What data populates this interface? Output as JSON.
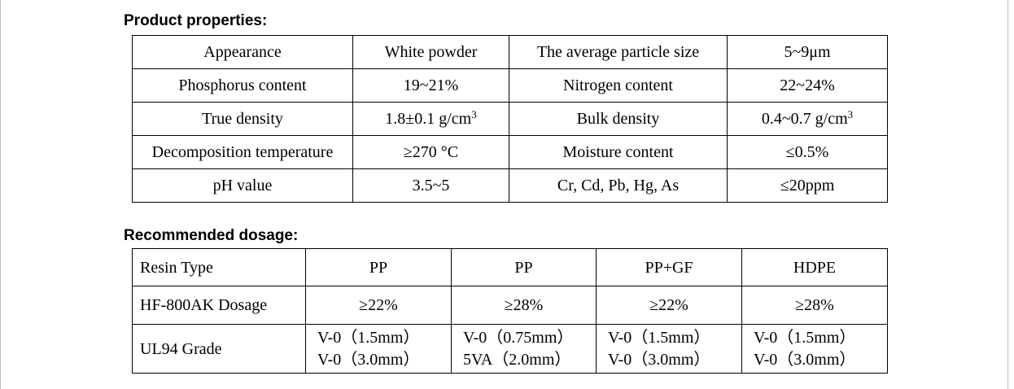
{
  "product_properties": {
    "heading": "Product properties:",
    "rows": [
      [
        "Appearance",
        "White powder",
        "The average particle size",
        "5~9μm"
      ],
      [
        "Phosphorus content",
        "19~21%",
        "Nitrogen content",
        "22~24%"
      ],
      [
        "True density",
        "1.8±0.1 g/cm",
        "Bulk density",
        "0.4~0.7 g/cm"
      ],
      [
        "Decomposition temperature",
        "≥270 °C",
        "Moisture content",
        "≤0.5%"
      ],
      [
        "pH value",
        "3.5~5",
        "Cr, Cd, Pb, Hg, As",
        "≤20ppm"
      ]
    ],
    "superscript": "3"
  },
  "recommended_dosage": {
    "heading": "Recommended dosage:",
    "header_row": [
      "Resin Type",
      "PP",
      "PP",
      "PP+GF",
      "HDPE"
    ],
    "dosage_row": [
      "HF-800AK Dosage",
      "≥22%",
      "≥28%",
      "≥22%",
      "≥28%"
    ],
    "grade_row": {
      "label": "UL94 Grade",
      "cells": [
        [
          "V-0（1.5mm）",
          "V-0（3.0mm）"
        ],
        [
          "V-0（0.75mm）",
          "5VA（2.0mm）"
        ],
        [
          "V-0（1.5mm）",
          "V-0（3.0mm）"
        ],
        [
          "V-0（1.5mm）",
          "V-0（3.0mm）"
        ]
      ]
    }
  }
}
